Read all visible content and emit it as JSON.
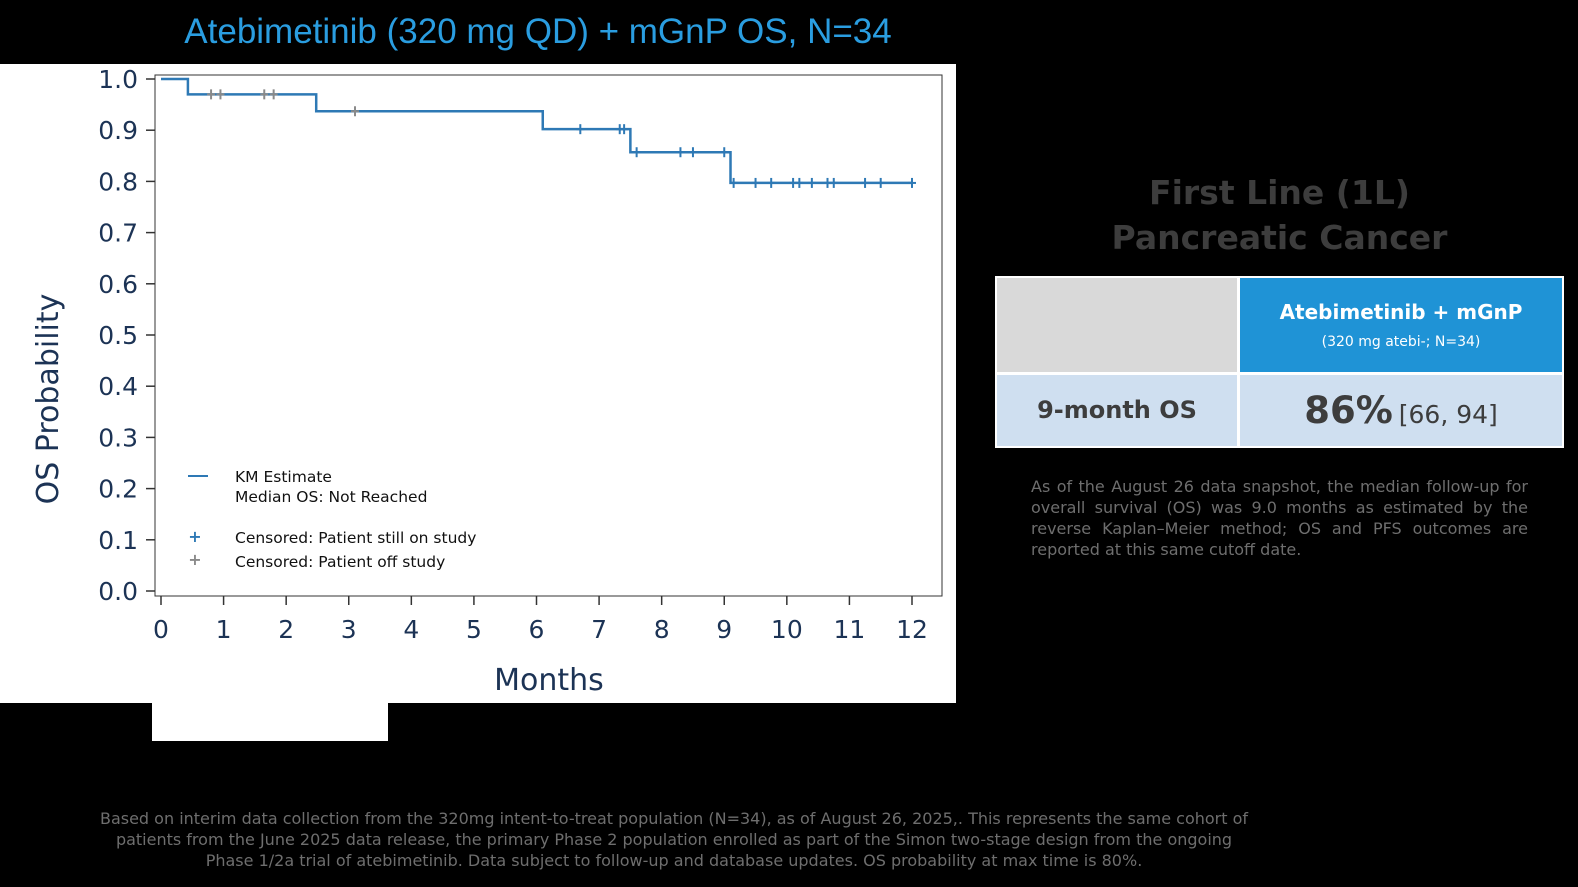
{
  "slide": {
    "title": "Atebimetinib (320 mg QD) + mGnP OS, N=34"
  },
  "chart_data": {
    "type": "line",
    "subtype": "kaplan-meier",
    "title": "",
    "xlabel": "Months",
    "ylabel": "OS Probability",
    "xlim": [
      0,
      12
    ],
    "ylim": [
      0,
      1
    ],
    "xticks": [
      "0",
      "1",
      "2",
      "3",
      "4",
      "5",
      "6",
      "7",
      "8",
      "9",
      "10",
      "11",
      "12"
    ],
    "yticks": [
      "0.0",
      "0.1",
      "0.2",
      "0.3",
      "0.4",
      "0.5",
      "0.6",
      "0.7",
      "0.8",
      "0.9",
      "1.0"
    ],
    "series": [
      {
        "name": "KM Estimate",
        "color": "#2e79b5",
        "x": [
          0,
          0.43,
          2.48,
          6.1,
          7.5,
          9.1,
          12.0
        ],
        "y": [
          1.0,
          0.97,
          0.937,
          0.902,
          0.857,
          0.797,
          0.797
        ]
      }
    ],
    "censored_on_study": {
      "name": "Censored: Patient still on study",
      "color": "#2e79b5",
      "x": [
        6.7,
        7.33,
        7.4,
        7.6,
        8.3,
        8.5,
        9.0,
        9.15,
        9.5,
        9.75,
        10.1,
        10.2,
        10.4,
        10.65,
        10.75,
        11.25,
        11.5,
        12.0
      ],
      "y": [
        0.902,
        0.902,
        0.902,
        0.857,
        0.857,
        0.857,
        0.857,
        0.797,
        0.797,
        0.797,
        0.797,
        0.797,
        0.797,
        0.797,
        0.797,
        0.797,
        0.797,
        0.797
      ]
    },
    "censored_off_study": {
      "name": "Censored: Patient off study",
      "color": "#8a8a8a",
      "x": [
        0.8,
        0.95,
        1.65,
        1.8,
        3.1
      ],
      "y": [
        0.97,
        0.97,
        0.97,
        0.97,
        0.937
      ]
    },
    "legend": {
      "position": "bottom-left",
      "km_label": "KM Estimate",
      "median_label": "Median OS: Not Reached",
      "on_study_label": "Censored: Patient still on study",
      "off_study_label": "Censored: Patient off study"
    }
  },
  "summary": {
    "heading_line1": "First Line (1L)",
    "heading_line2": "Pancreatic Cancer",
    "table": {
      "column_header": "Atebimetinib + mGnP",
      "column_subheader": "(320 mg atebi-; N=34)",
      "row_label": "9-month OS",
      "value": "86%",
      "ci": "[66, 94]"
    },
    "note": "As of the August 26  data snapshot, the median follow-up for overall survival (OS) was 9.0 months as estimated by the reverse Kaplan–Meier method; OS and PFS outcomes are reported at this same cutoff date."
  },
  "footer": {
    "line1": "Based on interim data collection from the 320mg intent-to-treat population (N=34), as of August 26, 2025,. This represents the same cohort of",
    "line2": "patients from the June 2025 data release, the primary Phase 2 population enrolled as part of the Simon two-stage design from the ongoing",
    "line3": "Phase 1/2a trial of atebimetinib. Data subject to follow-up and database updates. OS probability at max time is 80%."
  },
  "colors": {
    "title_blue": "#2a9de0",
    "km_blue": "#2e79b5",
    "censor_gray": "#8a8a8a",
    "header_blue": "#1f93d6",
    "row_blue": "#cfdff0",
    "corner_gray": "#d9d9d9"
  }
}
